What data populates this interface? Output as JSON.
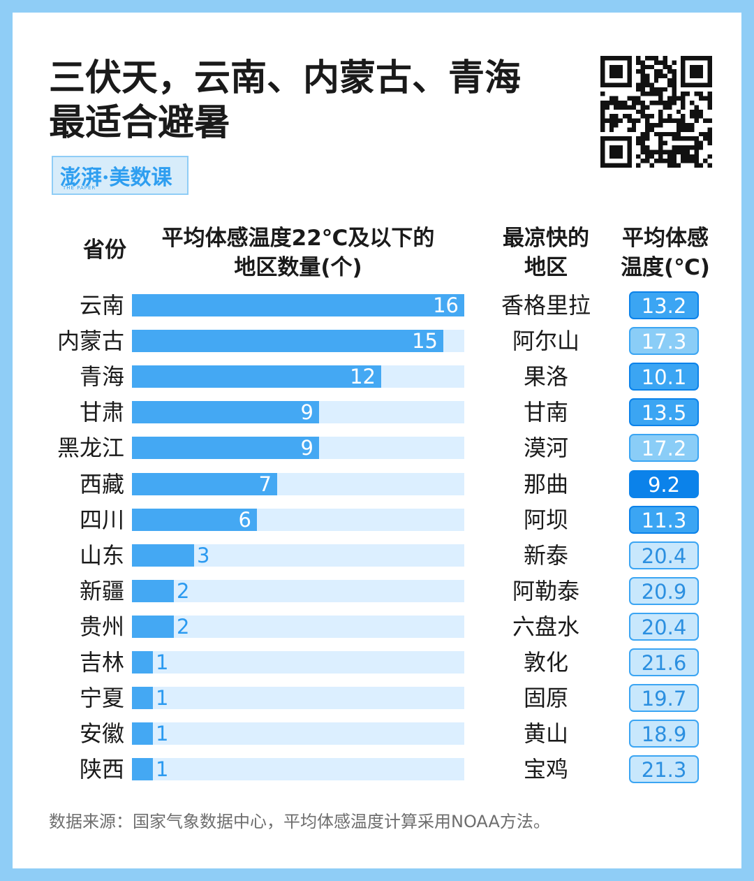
{
  "header": {
    "title_line1": "三伏天，云南、内蒙古、青海",
    "title_line2": "最适合避暑",
    "logo_text": "澎湃·美数课",
    "logo_sub": "THE PAPER"
  },
  "columns": {
    "province": "省份",
    "count_line1": "平均体感温度22℃及以下的",
    "count_line2": "地区数量(个)",
    "city_line1": "最凉快的",
    "city_line2": "地区",
    "temp_line1": "平均体感",
    "temp_line2": "温度(℃)"
  },
  "colors": {
    "bar": "#44a8f3",
    "track": "#dcefff",
    "temp_dark": "#0b82ea",
    "temp_mid": "#3ba5f3",
    "temp_light": "#8acdf7",
    "temp_lightest": "#c8e7fc",
    "frame": "#8fcdf6"
  },
  "chart_data": {
    "type": "bar",
    "orientation": "horizontal",
    "xlim": [
      0,
      16
    ],
    "categories": [
      "云南",
      "内蒙古",
      "青海",
      "甘肃",
      "黑龙江",
      "西藏",
      "四川",
      "山东",
      "新疆",
      "贵州",
      "吉林",
      "宁夏",
      "安徽",
      "陕西"
    ],
    "values": [
      16,
      15,
      12,
      9,
      9,
      7,
      6,
      3,
      2,
      2,
      1,
      1,
      1,
      1
    ],
    "coolest_city": [
      "香格里拉",
      "阿尔山",
      "果洛",
      "甘南",
      "漠河",
      "那曲",
      "阿坝",
      "新泰",
      "阿勒泰",
      "六盘水",
      "敦化",
      "固原",
      "黄山",
      "宝鸡"
    ],
    "avg_temp": [
      13.2,
      17.3,
      10.1,
      13.5,
      17.2,
      9.2,
      11.3,
      20.4,
      20.9,
      20.4,
      21.6,
      19.7,
      18.9,
      21.3
    ],
    "avg_temp_text": [
      "13.2",
      "17.3",
      "10.1",
      "13.5",
      "17.2",
      "9.2",
      "11.3",
      "20.4",
      "20.9",
      "20.4",
      "21.6",
      "19.7",
      "18.9",
      "21.3"
    ]
  },
  "footer": {
    "source": "数据来源：国家气象数据中心，平均体感温度计算采用NOAA方法。"
  }
}
